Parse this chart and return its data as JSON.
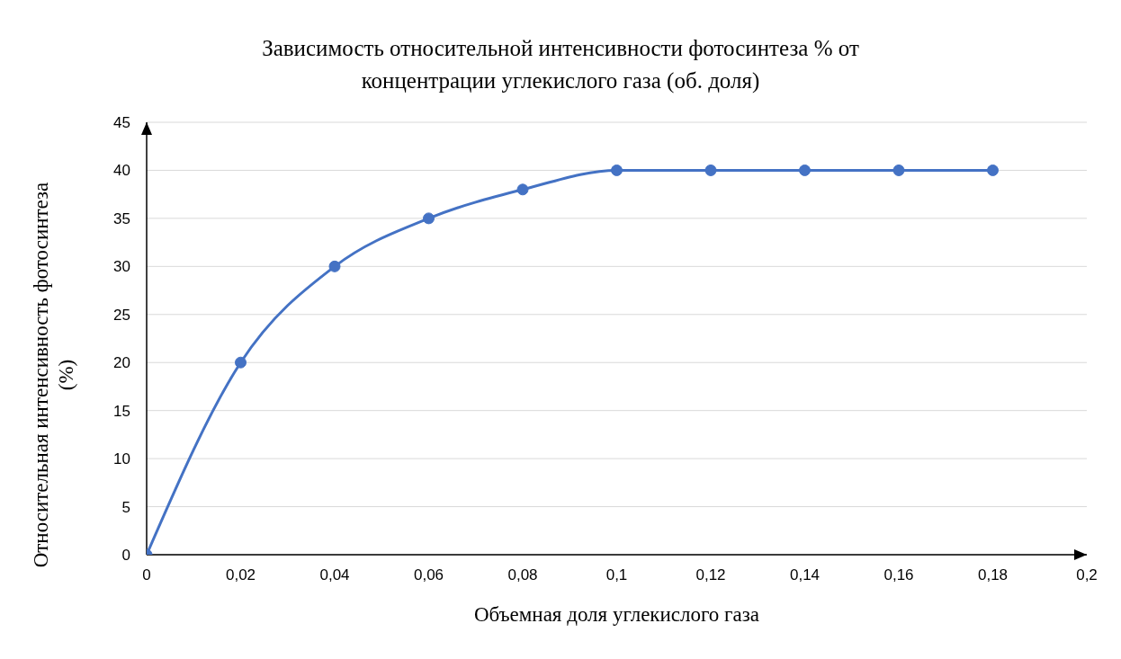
{
  "chart_data": {
    "type": "line",
    "title": "Зависимость относительной интенсивности фотосинтеза % от концентрации углекислого газа (об. доля)",
    "xlabel": "Объемная доля углекислого газа",
    "ylabel": "Относительная интенсивность фотосинтеза (%)",
    "x": [
      0,
      0.02,
      0.04,
      0.06,
      0.08,
      0.1,
      0.12,
      0.14,
      0.16,
      0.18
    ],
    "series": [
      {
        "color": "#4472c4",
        "values": [
          0,
          20,
          30,
          35,
          38,
          40,
          40,
          40,
          40,
          40
        ]
      }
    ],
    "xlim": [
      0,
      0.2
    ],
    "xticks": [
      0,
      {
        "value": 0.02,
        "label": "0,02"
      },
      {
        "value": 0.04,
        "label": "0,04"
      },
      {
        "value": 0.06,
        "label": "0,06"
      },
      {
        "value": 0.08,
        "label": "0,08"
      },
      {
        "value": 0.1,
        "label": "0,1"
      },
      {
        "value": 0.12,
        "label": "0,12"
      },
      {
        "value": 0.14,
        "label": "0,14"
      },
      {
        "value": 0.16,
        "label": "0,16"
      },
      {
        "value": 0.18,
        "label": "0,18"
      },
      {
        "value": 0.2,
        "label": "0,2"
      }
    ],
    "ylim": [
      0,
      45
    ],
    "yticks": [
      0,
      5,
      10,
      15,
      20,
      25,
      30,
      35,
      40,
      45
    ],
    "grid": "y",
    "legend": false,
    "marker": "circle",
    "line_style": "solid"
  }
}
